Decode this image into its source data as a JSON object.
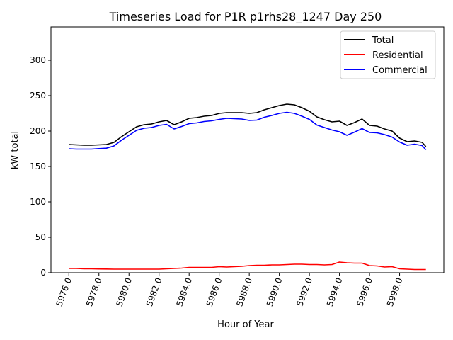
{
  "chart_data": {
    "type": "line",
    "title": "Timeseries Load for P1R p1rhs28_1247  Day 250",
    "xlabel": "Hour of Year",
    "ylabel": "kW total",
    "xlim": [
      5974.81,
      6000.94
    ],
    "ylim": [
      0,
      347
    ],
    "xticks": [
      5976,
      5978,
      5980,
      5982,
      5984,
      5986,
      5988,
      5990,
      5992,
      5994,
      5996,
      5998
    ],
    "xtick_labels": [
      "5976.0",
      "5978.0",
      "5980.0",
      "5982.0",
      "5984.0",
      "5986.0",
      "5988.0",
      "5990.0",
      "5992.0",
      "5994.0",
      "5996.0",
      "5998.0"
    ],
    "yticks": [
      0,
      50,
      100,
      150,
      200,
      250,
      300
    ],
    "ytick_labels": [
      "0",
      "50",
      "100",
      "150",
      "200",
      "250",
      "300"
    ],
    "grid": false,
    "legend_position": "top-right",
    "x": [
      5976,
      5976.5,
      5977,
      5977.5,
      5978,
      5978.5,
      5979,
      5979.5,
      5980,
      5980.5,
      5981,
      5981.5,
      5982,
      5982.5,
      5983,
      5983.5,
      5984,
      5984.5,
      5985,
      5985.5,
      5986,
      5986.5,
      5987,
      5987.5,
      5988,
      5988.5,
      5989,
      5989.5,
      5990,
      5990.5,
      5991,
      5991.5,
      5992,
      5992.5,
      5993,
      5993.5,
      5994,
      5994.5,
      5995,
      5995.5,
      5996,
      5996.5,
      5997,
      5997.5,
      5998,
      5998.5,
      5999,
      5999.5,
      5999.75
    ],
    "series": [
      {
        "name": "Total",
        "color": "#000000",
        "values": [
          181,
          180.5,
          180,
          180,
          180.5,
          181,
          184,
          192,
          199,
          206,
          209,
          210,
          213,
          215,
          209,
          213,
          218,
          219,
          221,
          222,
          225,
          226,
          226,
          226,
          225,
          226,
          230,
          233,
          236,
          238,
          237,
          233,
          228,
          220,
          216,
          213,
          214,
          208,
          212,
          217,
          208,
          207,
          203,
          200,
          190,
          185,
          186,
          184,
          178
        ]
      },
      {
        "name": "Residential",
        "color": "#ff0000",
        "values": [
          6,
          6,
          5.5,
          5.5,
          5.3,
          5.2,
          5,
          5,
          5,
          5,
          5,
          5,
          5,
          5.5,
          6,
          6.5,
          7.5,
          7.5,
          7.5,
          7.5,
          8.5,
          8,
          8.5,
          9,
          10,
          10.5,
          10.5,
          11,
          11,
          11.5,
          12,
          12,
          11.5,
          11.5,
          11,
          11.5,
          15,
          14,
          13.5,
          13.5,
          10,
          9.5,
          8,
          8.5,
          5.5,
          5,
          4.5,
          4.5,
          4.5
        ]
      },
      {
        "name": "Commercial",
        "color": "#0000ff",
        "values": [
          175,
          174.5,
          174.5,
          174.5,
          175.2,
          175.8,
          179,
          187,
          194,
          201,
          204,
          205,
          208,
          209.5,
          203,
          206.5,
          210.5,
          211.5,
          213.5,
          214.5,
          216.5,
          218,
          217.5,
          217,
          215,
          215.5,
          219.5,
          222,
          225,
          226.5,
          225,
          221,
          216.5,
          208.5,
          205,
          201.5,
          199,
          194,
          198.5,
          203.5,
          198,
          197.5,
          195,
          191.5,
          184.5,
          180,
          181.5,
          179.5,
          173.5
        ]
      }
    ]
  }
}
